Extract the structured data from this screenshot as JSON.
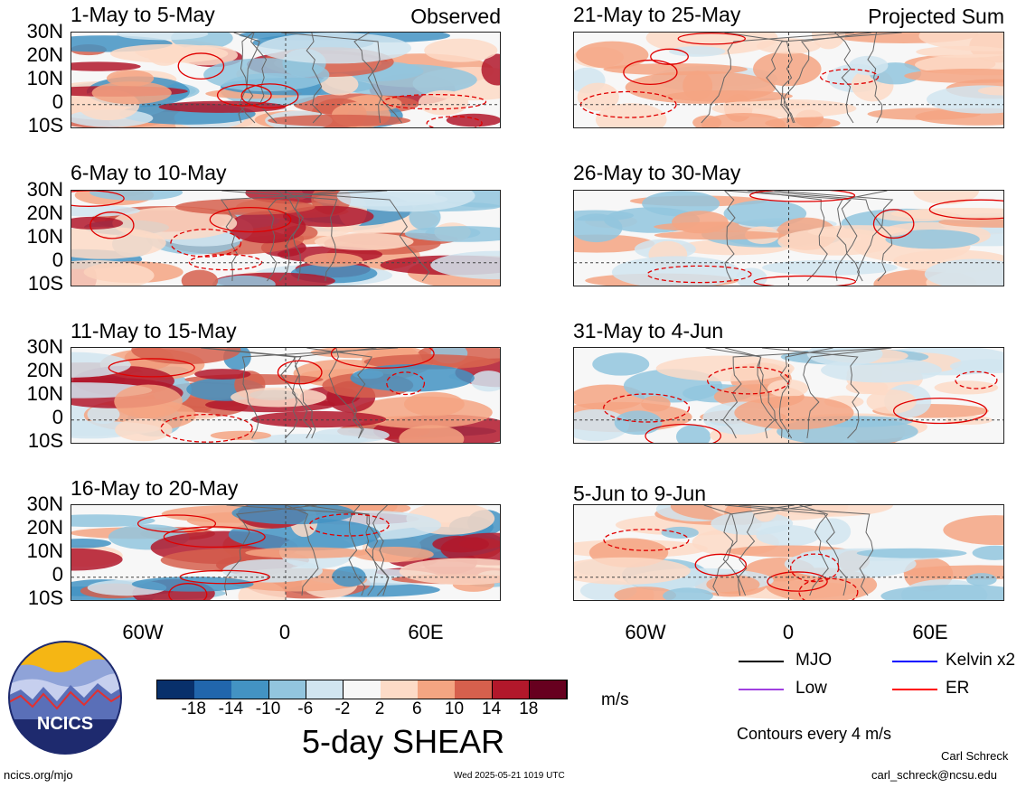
{
  "panels": [
    {
      "id": "p1",
      "title": "1-May to 5-May",
      "tag": "Observed"
    },
    {
      "id": "p2",
      "title": "6-May to 10-May",
      "tag": ""
    },
    {
      "id": "p3",
      "title": "11-May to 15-May",
      "tag": ""
    },
    {
      "id": "p4",
      "title": "16-May to 20-May",
      "tag": ""
    },
    {
      "id": "p5",
      "title": "21-May to 25-May",
      "tag": "Projected Sum"
    },
    {
      "id": "p6",
      "title": "26-May to 30-May",
      "tag": ""
    },
    {
      "id": "p7",
      "title": "31-May to 4-Jun",
      "tag": ""
    },
    {
      "id": "p8",
      "title": "5-Jun to 9-Jun",
      "tag": ""
    }
  ],
  "lat_labels": [
    "30N",
    "20N",
    "10N",
    "0",
    "10S"
  ],
  "lon_labels": [
    "60W",
    "0",
    "60E"
  ],
  "colorbar": {
    "colors": [
      "#08306b",
      "#2166ac",
      "#4393c3",
      "#92c5de",
      "#d1e5f0",
      "#f7f7f7",
      "#fddbc7",
      "#f4a582",
      "#d6604d",
      "#b2182b",
      "#67001f"
    ],
    "ticks": [
      "-18",
      "-14",
      "-10",
      "-6",
      "-2",
      "2",
      "6",
      "10",
      "14",
      "18"
    ],
    "units": "m/s",
    "title": "5-day SHEAR"
  },
  "legend": {
    "items": [
      {
        "label": "MJO",
        "color": "#000000"
      },
      {
        "label": "Kelvin x2",
        "color": "#0000ff"
      },
      {
        "label": "Low",
        "color": "#a040e0"
      },
      {
        "label": "ER",
        "color": "#ff0000"
      }
    ],
    "contour_note": "Contours every 4 m/s"
  },
  "logo": {
    "text": "NCICS"
  },
  "footer": {
    "left": "ncics.org/mjo",
    "timestamp": "Wed 2025-05-21 1019 UTC",
    "author": "Carl Schreck",
    "email": "carl_schreck@ncsu.edu"
  }
}
